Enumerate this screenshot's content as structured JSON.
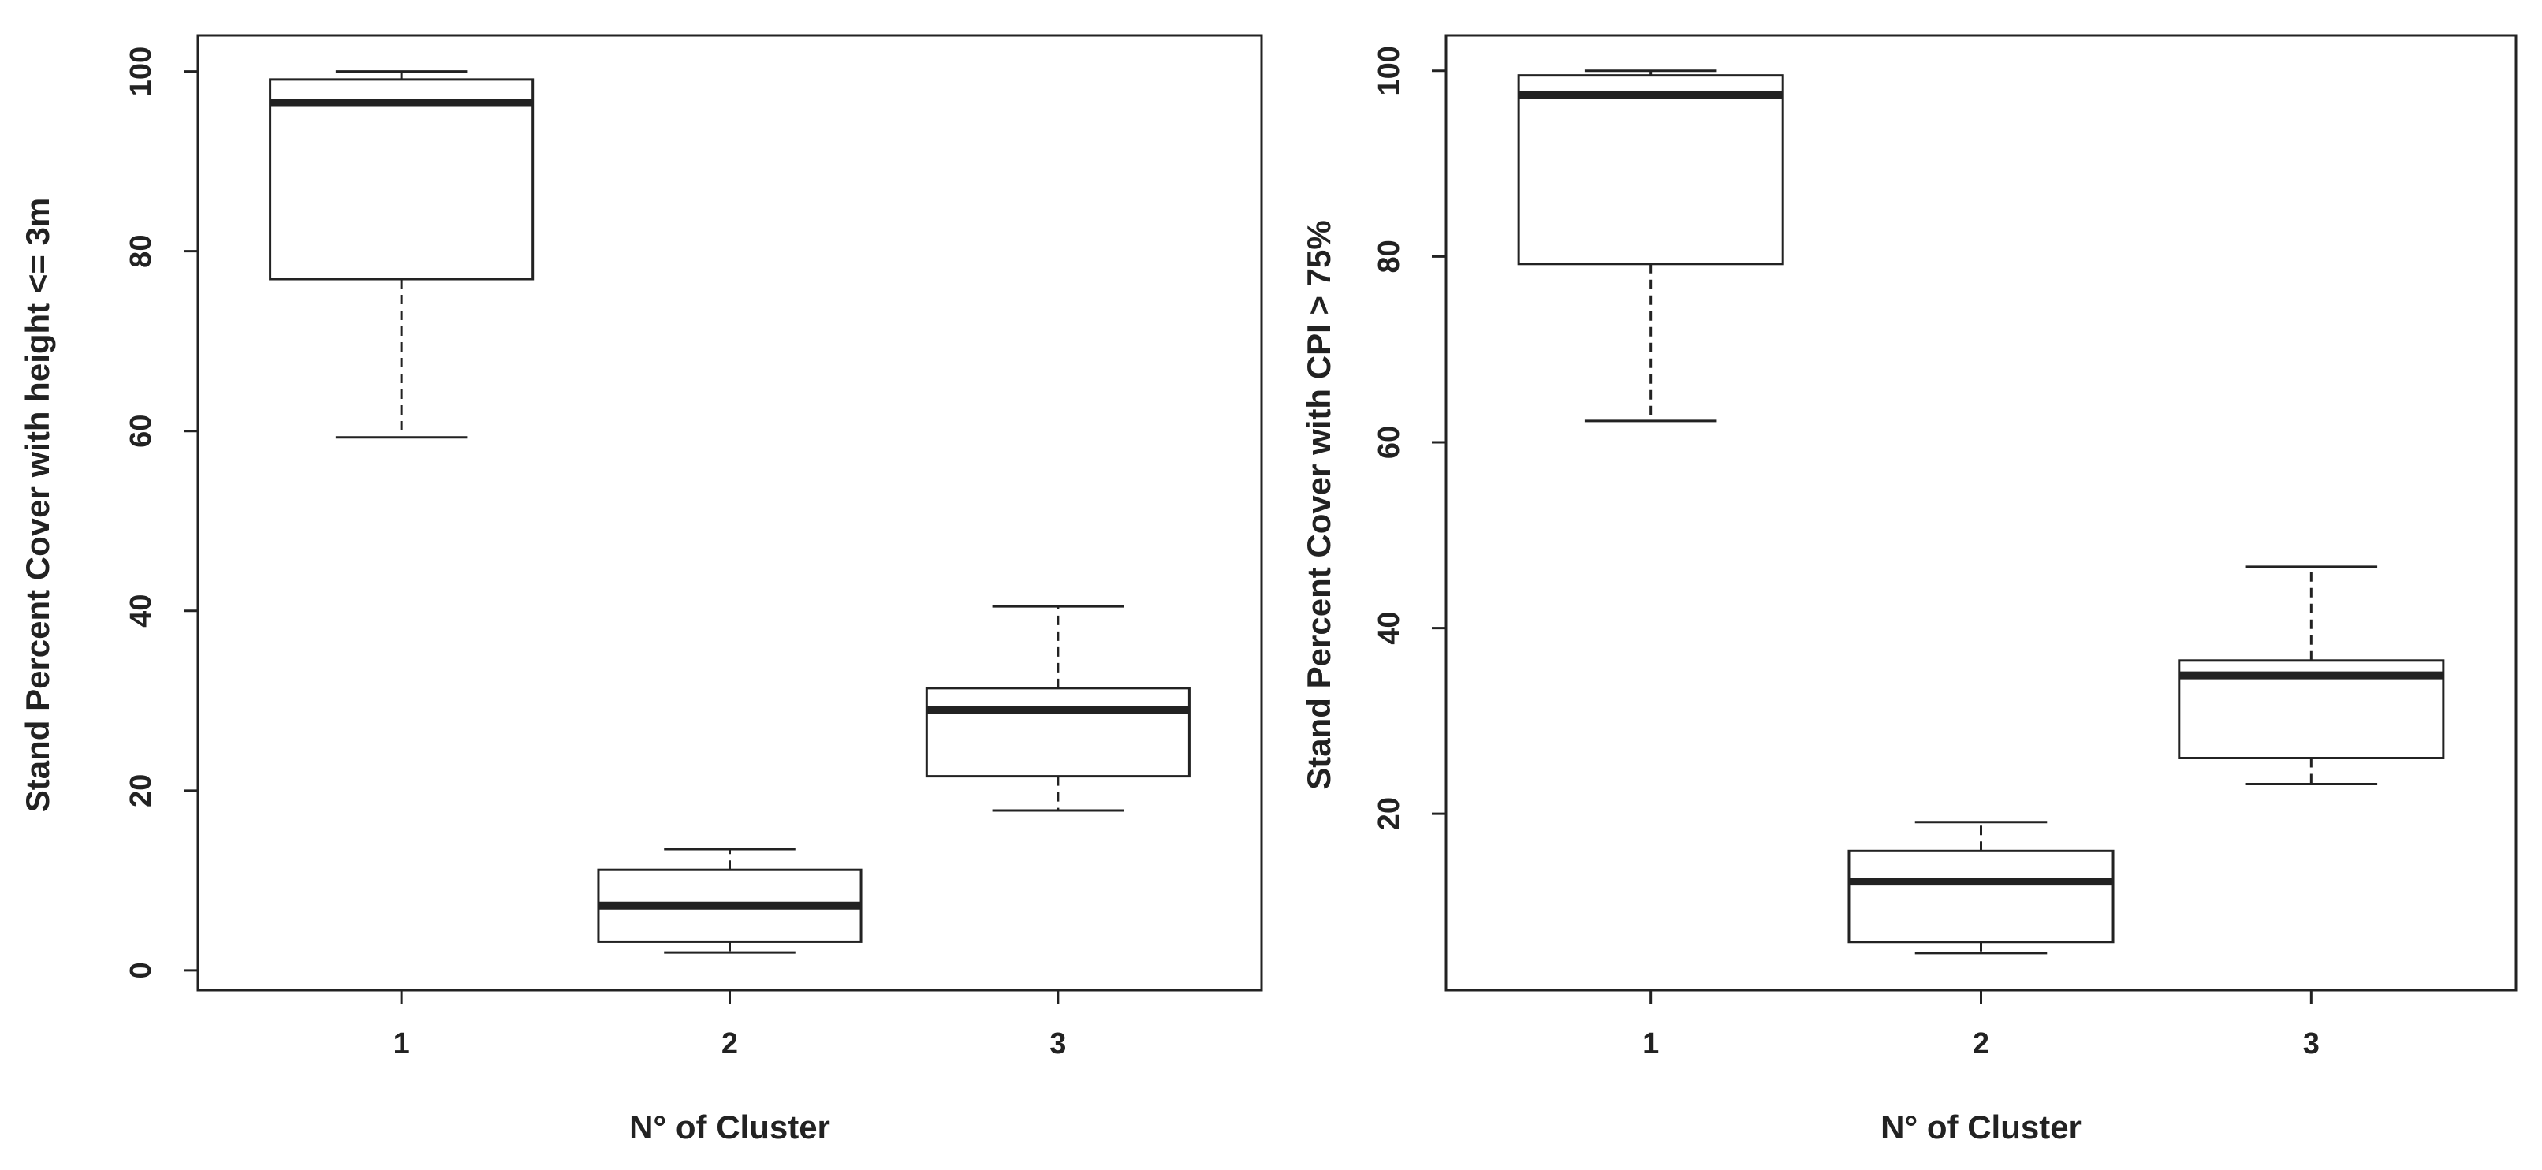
{
  "chart_data": [
    {
      "type": "box",
      "ylabel": "Stand Percent Cover with height <= 3m",
      "xlabel": "N° of Cluster",
      "categories": [
        "1",
        "2",
        "3"
      ],
      "stats": [
        {
          "min": 59.3,
          "q1": 76.9,
          "median": 96.5,
          "q3": 99.1,
          "max": 100
        },
        {
          "min": 2.0,
          "q1": 3.2,
          "median": 7.2,
          "q3": 11.2,
          "max": 13.5
        },
        {
          "min": 17.8,
          "q1": 21.6,
          "median": 29.0,
          "q3": 31.4,
          "max": 40.5
        }
      ],
      "ylim": [
        -2.2,
        104
      ],
      "yticks": [
        0,
        20,
        40,
        60,
        80,
        100
      ]
    },
    {
      "type": "box",
      "ylabel": "Stand Percent Cover with CPI > 75%",
      "xlabel": "N° of Cluster",
      "categories": [
        "1",
        "2",
        "3"
      ],
      "stats": [
        {
          "min": 62.3,
          "q1": 79.2,
          "median": 97.4,
          "q3": 99.5,
          "max": 100
        },
        {
          "min": 5.0,
          "q1": 6.2,
          "median": 12.7,
          "q3": 16.0,
          "max": 19.1
        },
        {
          "min": 23.2,
          "q1": 26.0,
          "median": 34.9,
          "q3": 36.5,
          "max": 46.6
        }
      ],
      "ylim": [
        1,
        103.8
      ],
      "yticks": [
        20,
        40,
        60,
        80,
        100
      ]
    }
  ]
}
